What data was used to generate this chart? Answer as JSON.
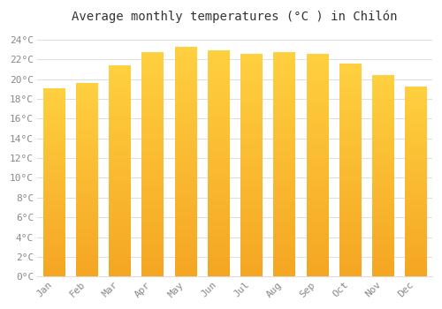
{
  "title": "Average monthly temperatures (°C ) in Chilón",
  "months": [
    "Jan",
    "Feb",
    "Mar",
    "Apr",
    "May",
    "Jun",
    "Jul",
    "Aug",
    "Sep",
    "Oct",
    "Nov",
    "Dec"
  ],
  "values": [
    19.0,
    19.5,
    21.3,
    22.7,
    23.2,
    22.8,
    22.5,
    22.7,
    22.5,
    21.5,
    20.3,
    19.2
  ],
  "bar_color_bottom": "#F5A623",
  "bar_color_top": "#FFD040",
  "background_color": "#FFFFFF",
  "grid_color": "#DDDDDD",
  "ytick_labels": [
    "0°C",
    "2°C",
    "4°C",
    "6°C",
    "8°C",
    "10°C",
    "12°C",
    "14°C",
    "16°C",
    "18°C",
    "20°C",
    "22°C",
    "24°C"
  ],
  "ytick_values": [
    0,
    2,
    4,
    6,
    8,
    10,
    12,
    14,
    16,
    18,
    20,
    22,
    24
  ],
  "ylim": [
    0,
    25
  ],
  "title_fontsize": 10,
  "tick_fontsize": 8,
  "tick_color": "#888888",
  "font_family": "monospace"
}
